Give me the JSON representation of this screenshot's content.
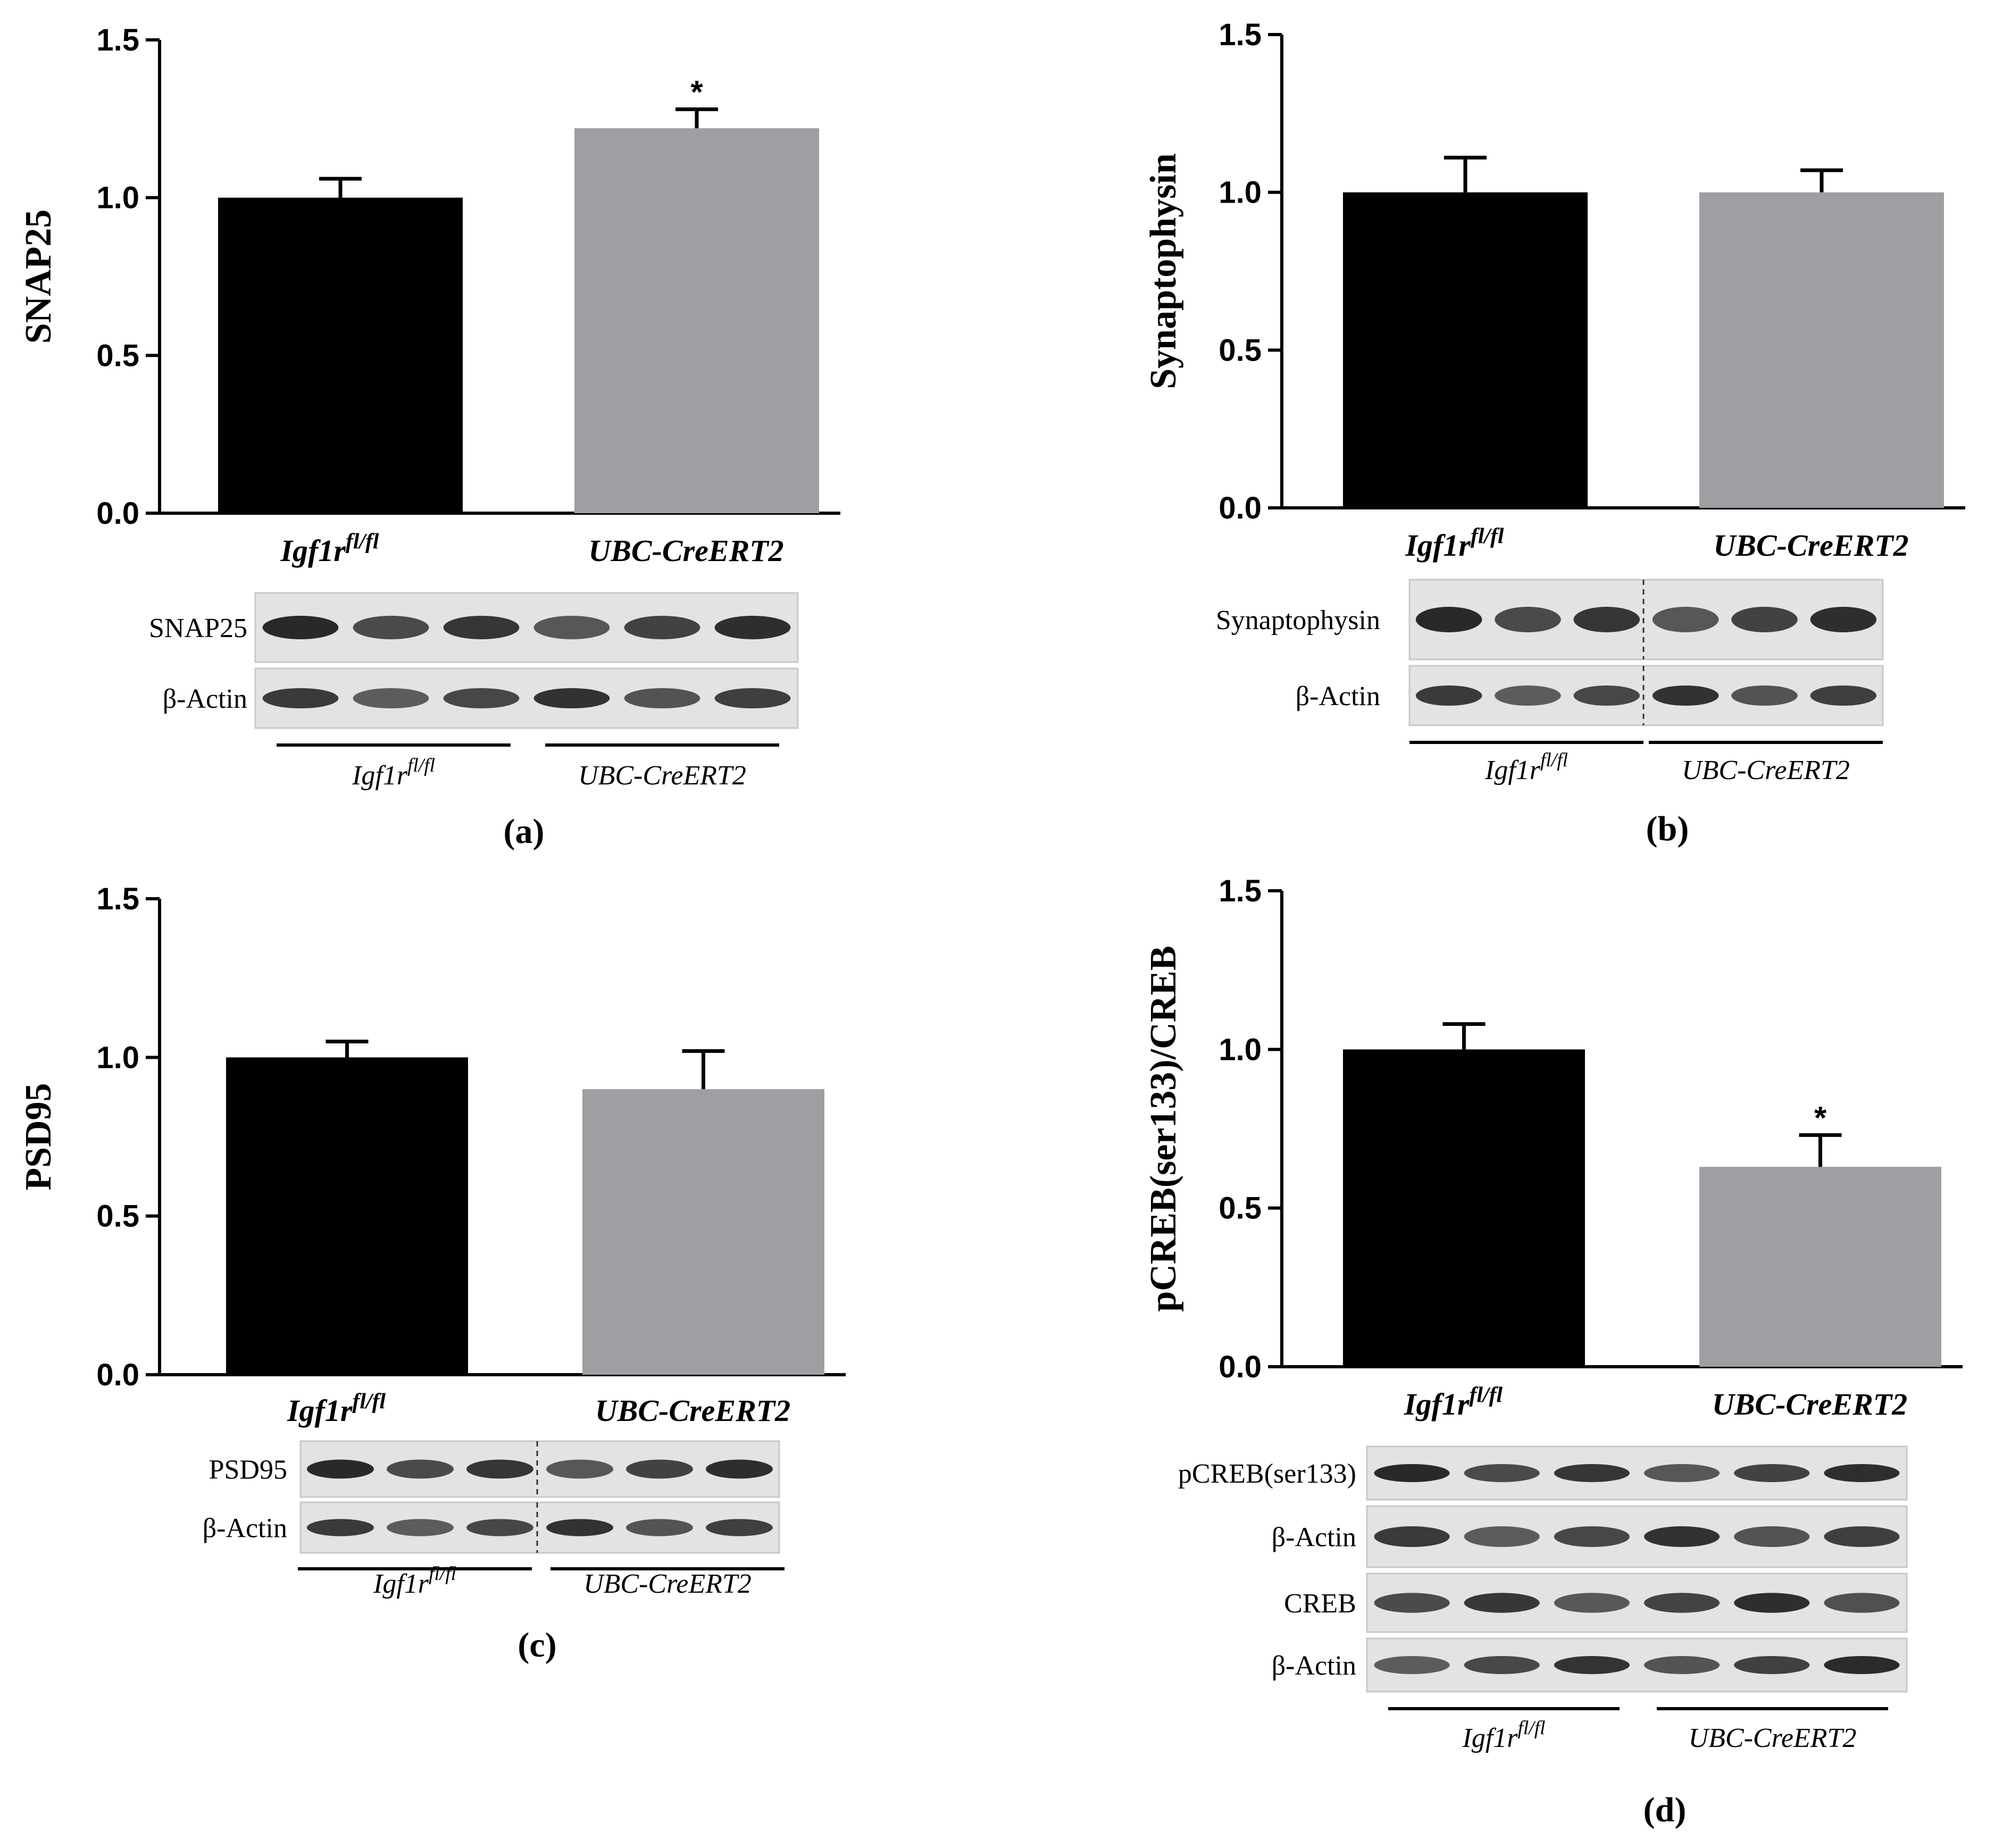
{
  "colors": {
    "black_bar": "#000000",
    "gray_bar": "#a09ea3",
    "axis": "#000000"
  },
  "chart_data": [
    {
      "type": "bar",
      "panel_label": "(a)",
      "ylabel": "SNAP25",
      "ylim": [
        0,
        1.5
      ],
      "yticks": [
        "0.0",
        "0.5",
        "1.0",
        "1.5"
      ],
      "categories": [
        {
          "base": "Igf1r",
          "sup": "fl/fl"
        },
        {
          "base": "UBC-CreERT2",
          "sup": ""
        }
      ],
      "values": [
        1.0,
        1.22
      ],
      "errors": [
        0.06,
        0.06
      ],
      "significance": [
        "",
        "*"
      ],
      "blot_labels": [
        "SNAP25",
        "β-Actin"
      ],
      "blot_groups": [
        {
          "base": "Igf1r",
          "sup": "fl/fl"
        },
        {
          "base": "UBC-CreERT2",
          "sup": ""
        }
      ]
    },
    {
      "type": "bar",
      "panel_label": "(b)",
      "ylabel": "Synaptophysin",
      "ylim": [
        0,
        1.5
      ],
      "yticks": [
        "0.0",
        "0.5",
        "1.0",
        "1.5"
      ],
      "categories": [
        {
          "base": "Igf1r",
          "sup": "fl/fl"
        },
        {
          "base": "UBC-CreERT2",
          "sup": ""
        }
      ],
      "values": [
        1.0,
        1.0
      ],
      "errors": [
        0.11,
        0.07
      ],
      "significance": [
        "",
        ""
      ],
      "blot_labels": [
        "Synaptophysin",
        "β-Actin"
      ],
      "blot_groups": [
        {
          "base": "Igf1r",
          "sup": "fl/fl"
        },
        {
          "base": "UBC-CreERT2",
          "sup": ""
        }
      ]
    },
    {
      "type": "bar",
      "panel_label": "(c)",
      "ylabel": "PSD95",
      "ylim": [
        0,
        1.5
      ],
      "yticks": [
        "0.0",
        "0.5",
        "1.0",
        "1.5"
      ],
      "categories": [
        {
          "base": "Igf1r",
          "sup": "fl/fl"
        },
        {
          "base": "UBC-CreERT2",
          "sup": ""
        }
      ],
      "values": [
        1.0,
        0.9
      ],
      "errors": [
        0.05,
        0.12
      ],
      "significance": [
        "",
        ""
      ],
      "blot_labels": [
        "PSD95",
        "β-Actin"
      ],
      "blot_groups": [
        {
          "base": "Igf1r",
          "sup": "fl/fl"
        },
        {
          "base": "UBC-CreERT2",
          "sup": ""
        }
      ]
    },
    {
      "type": "bar",
      "panel_label": "(d)",
      "ylabel": "pCREB(ser133)/CREB",
      "ylim": [
        0,
        1.5
      ],
      "yticks": [
        "0.0",
        "0.5",
        "1.0",
        "1.5"
      ],
      "categories": [
        {
          "base": "Igf1r",
          "sup": "fl/fl"
        },
        {
          "base": "UBC-CreERT2",
          "sup": ""
        }
      ],
      "values": [
        1.0,
        0.63
      ],
      "errors": [
        0.08,
        0.1
      ],
      "significance": [
        "",
        "*"
      ],
      "blot_labels": [
        "pCREB(ser133)",
        "β-Actin",
        "CREB",
        "β-Actin"
      ],
      "blot_groups": [
        {
          "base": "Igf1r",
          "sup": "fl/fl"
        },
        {
          "base": "UBC-CreERT2",
          "sup": ""
        }
      ]
    }
  ]
}
